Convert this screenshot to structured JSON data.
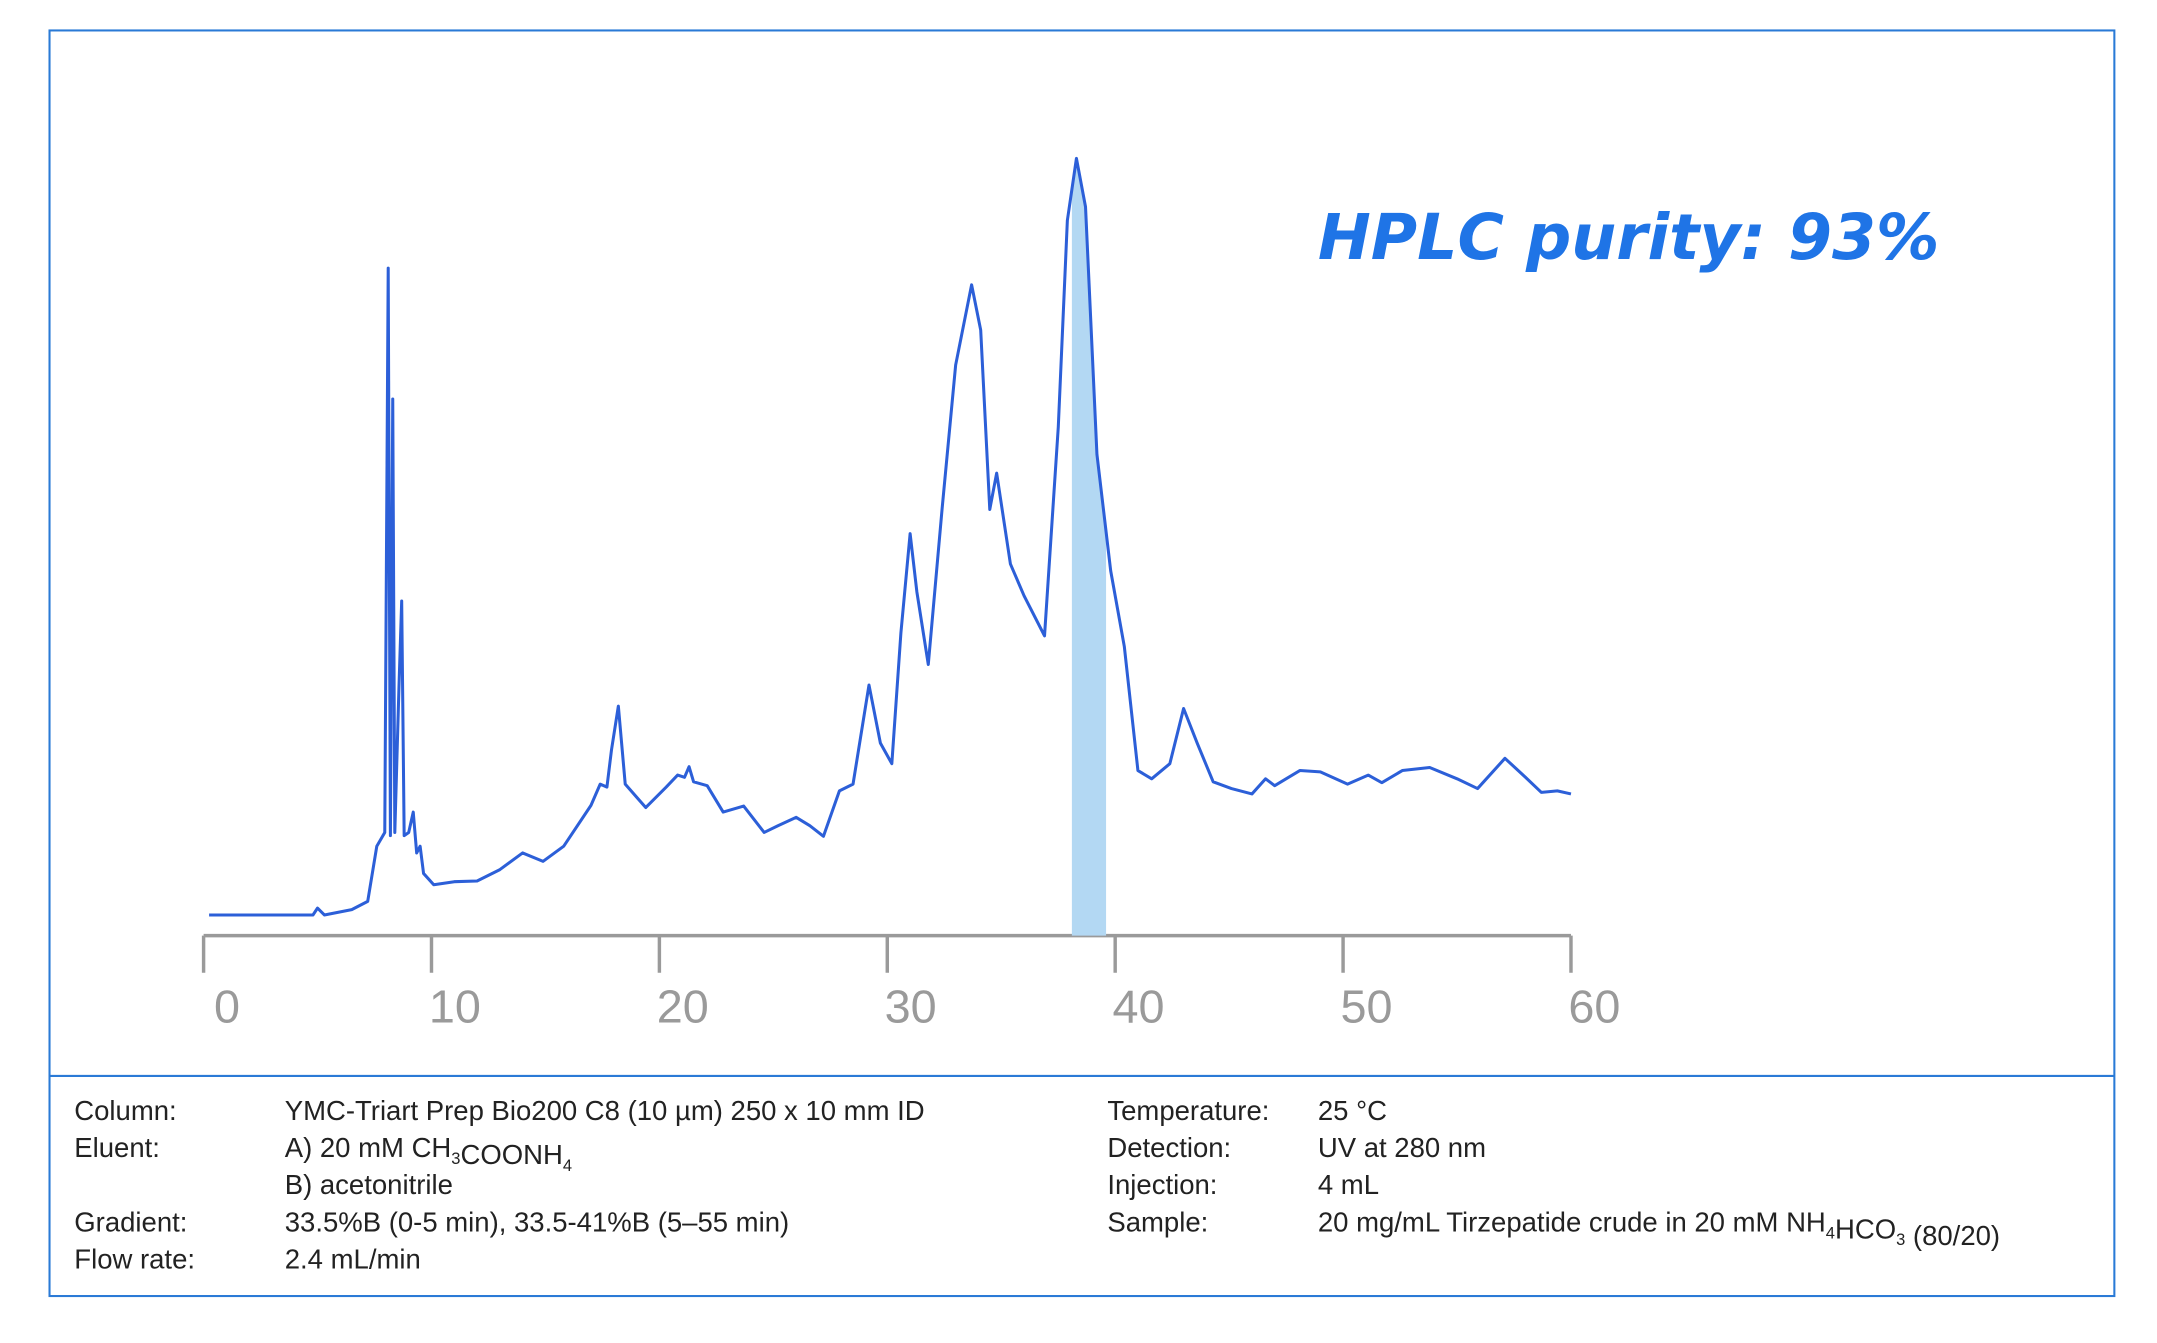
{
  "chart_data": {
    "type": "line",
    "annotation": "HPLC purity: 93%",
    "color": "#2c5fd8",
    "xlim": [
      0,
      60
    ],
    "xticks": [
      0,
      10,
      20,
      30,
      40,
      50,
      60
    ],
    "ylim": [
      0,
      100
    ],
    "x": [
      0.24,
      4.8,
      5.0,
      5.3,
      6.5,
      7.2,
      7.6,
      7.95,
      8.1,
      8.2,
      8.3,
      8.39,
      8.57,
      8.69,
      8.8,
      9.0,
      9.2,
      9.35,
      9.5,
      9.65,
      10.1,
      11,
      12,
      13,
      14,
      14.9,
      15.8,
      17.0,
      17.4,
      17.7,
      17.9,
      18.2,
      18.5,
      19.4,
      20.3,
      20.8,
      21.1,
      21.3,
      21.5,
      22.1,
      22.8,
      23.7,
      24.6,
      25.2,
      26.0,
      26.6,
      27.2,
      27.9,
      28.5,
      29.2,
      29.7,
      30.2,
      30.6,
      31.0,
      31.3,
      31.8,
      32.4,
      33.0,
      33.7,
      34.1,
      34.5,
      34.8,
      35.4,
      36.0,
      36.9,
      37.5,
      37.9,
      38.3,
      38.7,
      39.2,
      39.8,
      40.4,
      41.0,
      41.6,
      42.4,
      43.0,
      43.6,
      44.3,
      45.1,
      46.0,
      46.6,
      47.0,
      47.5,
      48.1,
      49.0,
      50.2,
      51.1,
      51.7,
      52.6,
      53.8,
      55.0,
      55.9,
      57.1,
      58.0,
      58.7,
      59.4,
      60.0
    ],
    "values": [
      0,
      0,
      0.9,
      0,
      0.7,
      1.8,
      9.1,
      10.9,
      85.5,
      10.5,
      68.2,
      10.9,
      30,
      41.5,
      10.5,
      10.9,
      13.6,
      8.2,
      9.1,
      5.5,
      4,
      4.4,
      4.5,
      6,
      8.2,
      7.1,
      9.1,
      14.5,
      17.3,
      16.9,
      21.8,
      27.6,
      17.3,
      14.2,
      16.9,
      18.5,
      18.2,
      19.6,
      17.6,
      17.1,
      13.6,
      14.4,
      10.9,
      11.8,
      12.9,
      11.8,
      10.4,
      16.4,
      17.3,
      30.4,
      22.7,
      20,
      37.3,
      50.4,
      42.7,
      33.1,
      53.6,
      72.7,
      83.3,
      77.3,
      53.6,
      58.4,
      46.4,
      42.2,
      36.9,
      64.5,
      91.8,
      100,
      93.6,
      60.9,
      45.5,
      35.5,
      19.1,
      18,
      20,
      27.3,
      22.7,
      17.6,
      16.7,
      16,
      18,
      17.1,
      18,
      19.1,
      18.9,
      17.3,
      18.5,
      17.5,
      19.1,
      19.5,
      18,
      16.7,
      20.7,
      18.2,
      16.2,
      16.4,
      16
    ],
    "fraction": {
      "start": 38.1,
      "end": 39.6,
      "color": "#b3d8f3"
    }
  },
  "conditions": {
    "left": [
      {
        "label": "Column:",
        "lines": [
          [
            "YMC-Triart Prep Bio200 C8 (10 µm) 250 x 10 mm ID"
          ]
        ]
      },
      {
        "label": "Eluent:",
        "lines": [
          [
            "A) 20 mM CH",
            {
              "sub": "3"
            },
            "COONH",
            {
              "sub": "4"
            }
          ],
          [
            "B) acetonitrile"
          ]
        ]
      },
      {
        "label": "Gradient:",
        "lines": [
          [
            "33.5%B (0-5 min), 33.5-41%B (5–55 min)"
          ]
        ]
      },
      {
        "label": "Flow rate:",
        "lines": [
          [
            "2.4 mL/min"
          ]
        ]
      }
    ],
    "right": [
      {
        "label": "Temperature:",
        "lines": [
          [
            "25 °C"
          ]
        ]
      },
      {
        "label": "Detection:",
        "lines": [
          [
            "UV at 280 nm"
          ]
        ]
      },
      {
        "label": "Injection:",
        "lines": [
          [
            "4 mL"
          ]
        ]
      },
      {
        "label": "Sample:",
        "lines": [
          [
            "20 mg/mL Tirzepatide crude in 20 mM NH",
            {
              "sub": "4"
            },
            "HCO",
            {
              "sub": "3"
            },
            " (80/20)"
          ]
        ]
      }
    ]
  }
}
